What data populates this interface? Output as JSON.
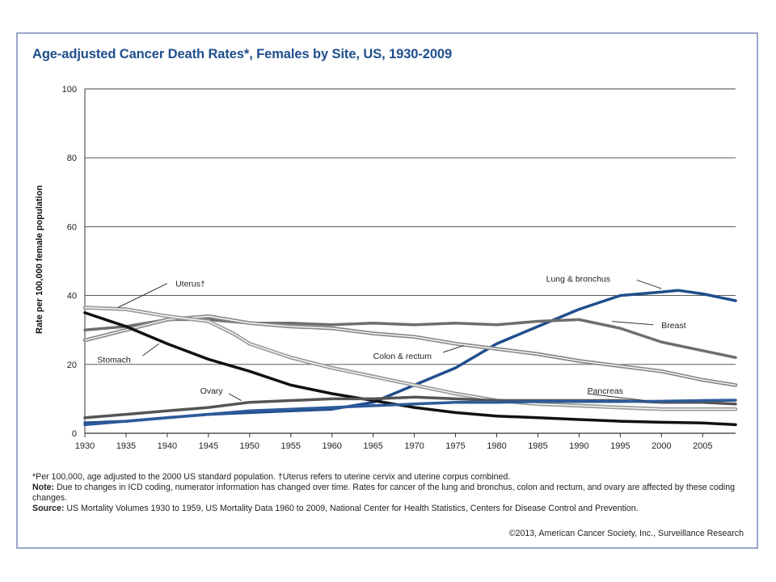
{
  "chart_data": {
    "type": "line",
    "title": "Age-adjusted Cancer Death Rates*, Females by Site, US, 1930-2009",
    "ylabel": "Rate per 100,000 female population",
    "xlabel": "",
    "xlim": [
      1930,
      2009
    ],
    "ylim": [
      0,
      100
    ],
    "x_ticks": [
      1930,
      1935,
      1940,
      1945,
      1950,
      1955,
      1960,
      1965,
      1970,
      1975,
      1980,
      1985,
      1990,
      1995,
      2000,
      2005
    ],
    "y_ticks": [
      0,
      20,
      40,
      60,
      80,
      100
    ],
    "grid": "horizontal",
    "series": [
      {
        "name": "Lung & bronchus",
        "color": "#1f4e8c",
        "width": 3.5,
        "halo": false,
        "x": [
          1930,
          1935,
          1940,
          1945,
          1950,
          1955,
          1960,
          1965,
          1970,
          1975,
          1980,
          1985,
          1990,
          1995,
          2000,
          2002,
          2005,
          2009
        ],
        "y": [
          3,
          3.5,
          4.5,
          5.5,
          6,
          6.5,
          7,
          9,
          14,
          19,
          26,
          31,
          36,
          40,
          41,
          41.5,
          40.5,
          38.5
        ]
      },
      {
        "name": "Breast",
        "color": "#6e6e6e",
        "width": 3.5,
        "halo": false,
        "x": [
          1930,
          1935,
          1940,
          1945,
          1950,
          1955,
          1960,
          1965,
          1970,
          1975,
          1980,
          1985,
          1990,
          1995,
          2000,
          2005,
          2009
        ],
        "y": [
          30,
          31,
          33,
          33,
          32,
          32,
          31.5,
          32,
          31.5,
          32,
          31.5,
          32.5,
          33,
          30.5,
          26.5,
          24,
          22
        ]
      },
      {
        "name": "Colon & rectum",
        "color": "#8a8a8a",
        "width": 3.5,
        "halo": true,
        "x": [
          1930,
          1935,
          1940,
          1945,
          1950,
          1955,
          1960,
          1965,
          1970,
          1975,
          1980,
          1985,
          1990,
          1995,
          2000,
          2005,
          2009
        ],
        "y": [
          27,
          30,
          33,
          34,
          32,
          31,
          30.5,
          29,
          28,
          26,
          24.5,
          23,
          21,
          19.5,
          18,
          15.5,
          14
        ]
      },
      {
        "name": "Uterus†",
        "color": "#9a9a9a",
        "width": 3.5,
        "halo": true,
        "x": [
          1930,
          1935,
          1940,
          1945,
          1948,
          1950,
          1955,
          1960,
          1965,
          1970,
          1975,
          1980,
          1985,
          1990,
          1995,
          2000,
          2005,
          2009
        ],
        "y": [
          36.5,
          36,
          34,
          32.5,
          29,
          26,
          22,
          19,
          16.5,
          14,
          11.5,
          9.5,
          8.5,
          8,
          7.5,
          7,
          7,
          7
        ]
      },
      {
        "name": "Stomach",
        "color": "#111111",
        "width": 3.5,
        "halo": false,
        "x": [
          1930,
          1935,
          1940,
          1945,
          1950,
          1955,
          1960,
          1965,
          1970,
          1975,
          1980,
          1985,
          1990,
          1995,
          2000,
          2005,
          2009
        ],
        "y": [
          35,
          31,
          26,
          21.5,
          18,
          14,
          11.5,
          9.5,
          7.5,
          6,
          5,
          4.5,
          4,
          3.5,
          3.2,
          3,
          2.5
        ]
      },
      {
        "name": "Ovary",
        "color": "#555555",
        "width": 3.5,
        "halo": false,
        "x": [
          1930,
          1935,
          1940,
          1945,
          1950,
          1955,
          1960,
          1965,
          1970,
          1975,
          1980,
          1985,
          1990,
          1995,
          2000,
          2005,
          2009
        ],
        "y": [
          4.5,
          5.5,
          6.5,
          7.5,
          9,
          9.5,
          10,
          10,
          10.5,
          10,
          9.5,
          9.5,
          9.5,
          9.5,
          9,
          9,
          8.5
        ]
      },
      {
        "name": "Pancreas",
        "color": "#2d5a9a",
        "width": 3.5,
        "halo": false,
        "x": [
          1930,
          1935,
          1940,
          1945,
          1950,
          1955,
          1960,
          1965,
          1970,
          1975,
          1980,
          1985,
          1990,
          1995,
          2000,
          2005,
          2009
        ],
        "y": [
          2.5,
          3.5,
          4.5,
          5.5,
          6.5,
          7,
          7.5,
          8,
          8.5,
          9,
          9,
          9.2,
          9.2,
          9.2,
          9.3,
          9.5,
          9.6
        ]
      }
    ],
    "labels": [
      {
        "series": "Lung & bronchus",
        "text": "Lung & bronchus",
        "tx": 1986,
        "ty": 45,
        "from": [
          1997,
          44.5
        ],
        "to": [
          2000,
          42
        ]
      },
      {
        "series": "Breast",
        "text": "Breast",
        "tx": 2000,
        "ty": 31.5,
        "from": [
          1999,
          31.5
        ],
        "to": [
          1994,
          32.5
        ]
      },
      {
        "series": "Colon & rectum",
        "text": "Colon & rectum",
        "tx": 1965,
        "ty": 22.5,
        "from": [
          1973.5,
          23.5
        ],
        "to": [
          1976,
          25.5
        ]
      },
      {
        "series": "Uterus†",
        "text": "Uterus†",
        "tx": 1941,
        "ty": 43.5,
        "from": [
          1940,
          43.5
        ],
        "to": [
          1934,
          36.5
        ]
      },
      {
        "series": "Stomach",
        "text": "Stomach",
        "tx": 1931.5,
        "ty": 21.5,
        "from": [
          1937,
          22.5
        ],
        "to": [
          1939,
          26
        ]
      },
      {
        "series": "Ovary",
        "text": "Ovary",
        "tx": 1944,
        "ty": 12.5,
        "from": [
          1947.5,
          11.5
        ],
        "to": [
          1949,
          9.5
        ]
      },
      {
        "series": "Pancreas",
        "text": "Pancreas",
        "tx": 1991,
        "ty": 12.5,
        "from": [
          1991,
          11.5
        ],
        "to": [
          1998,
          9.5
        ]
      }
    ]
  },
  "footnotes": {
    "asterisk": "*Per 100,000, age adjusted to the 2000 US standard population. †Uterus refers to uterine cervix and uterine corpus combined.",
    "note_label": "Note:",
    "note_text": " Due to changes in ICD coding, numerator information has changed over time. Rates for cancer of the lung and bronchus, colon and rectum, and ovary are affected by these coding changes.",
    "source_label": "Source:",
    "source_text": " US Mortality Volumes 1930 to 1959, US Mortality Data 1960 to 2009, National Center for Health Statistics, Centers for Disease Control and Prevention."
  },
  "copyright": "©2013, American Cancer Society, Inc., Surveillance Research"
}
